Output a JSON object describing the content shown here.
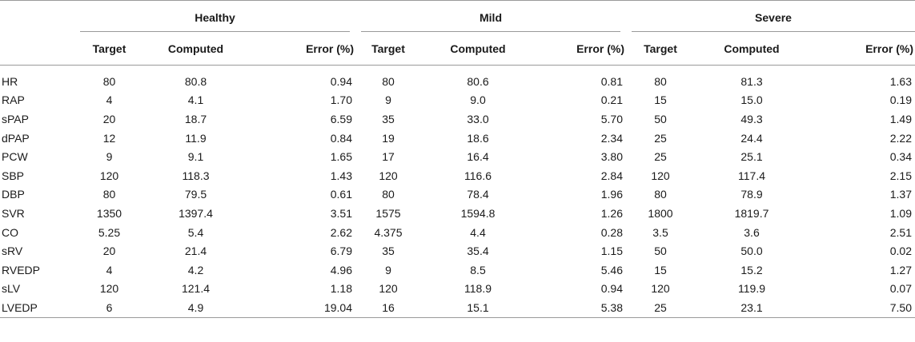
{
  "groups": [
    "Healthy",
    "Mild",
    "Severe"
  ],
  "subheaders": [
    "Target",
    "Computed",
    "Error (%)"
  ],
  "rows": [
    {
      "name": "HR",
      "healthy": [
        "80",
        "80.8",
        "0.94"
      ],
      "mild": [
        "80",
        "80.6",
        "0.81"
      ],
      "severe": [
        "80",
        "81.3",
        "1.63"
      ]
    },
    {
      "name": "RAP",
      "healthy": [
        "4",
        "4.1",
        "1.70"
      ],
      "mild": [
        "9",
        "9.0",
        "0.21"
      ],
      "severe": [
        "15",
        "15.0",
        "0.19"
      ]
    },
    {
      "name": "sPAP",
      "healthy": [
        "20",
        "18.7",
        "6.59"
      ],
      "mild": [
        "35",
        "33.0",
        "5.70"
      ],
      "severe": [
        "50",
        "49.3",
        "1.49"
      ]
    },
    {
      "name": "dPAP",
      "healthy": [
        "12",
        "11.9",
        "0.84"
      ],
      "mild": [
        "19",
        "18.6",
        "2.34"
      ],
      "severe": [
        "25",
        "24.4",
        "2.22"
      ]
    },
    {
      "name": "PCW",
      "healthy": [
        "9",
        "9.1",
        "1.65"
      ],
      "mild": [
        "17",
        "16.4",
        "3.80"
      ],
      "severe": [
        "25",
        "25.1",
        "0.34"
      ]
    },
    {
      "name": "SBP",
      "healthy": [
        "120",
        "118.3",
        "1.43"
      ],
      "mild": [
        "120",
        "116.6",
        "2.84"
      ],
      "severe": [
        "120",
        "117.4",
        "2.15"
      ]
    },
    {
      "name": "DBP",
      "healthy": [
        "80",
        "79.5",
        "0.61"
      ],
      "mild": [
        "80",
        "78.4",
        "1.96"
      ],
      "severe": [
        "80",
        "78.9",
        "1.37"
      ]
    },
    {
      "name": "SVR",
      "healthy": [
        "1350",
        "1397.4",
        "3.51"
      ],
      "mild": [
        "1575",
        "1594.8",
        "1.26"
      ],
      "severe": [
        "1800",
        "1819.7",
        "1.09"
      ]
    },
    {
      "name": "CO",
      "healthy": [
        "5.25",
        "5.4",
        "2.62"
      ],
      "mild": [
        "4.375",
        "4.4",
        "0.28"
      ],
      "severe": [
        "3.5",
        "3.6",
        "2.51"
      ]
    },
    {
      "name": "sRV",
      "healthy": [
        "20",
        "21.4",
        "6.79"
      ],
      "mild": [
        "35",
        "35.4",
        "1.15"
      ],
      "severe": [
        "50",
        "50.0",
        "0.02"
      ]
    },
    {
      "name": "RVEDP",
      "healthy": [
        "4",
        "4.2",
        "4.96"
      ],
      "mild": [
        "9",
        "8.5",
        "5.46"
      ],
      "severe": [
        "15",
        "15.2",
        "1.27"
      ]
    },
    {
      "name": "sLV",
      "healthy": [
        "120",
        "121.4",
        "1.18"
      ],
      "mild": [
        "120",
        "118.9",
        "0.94"
      ],
      "severe": [
        "120",
        "119.9",
        "0.07"
      ]
    },
    {
      "name": "LVEDP",
      "healthy": [
        "6",
        "4.9",
        "19.04"
      ],
      "mild": [
        "16",
        "15.1",
        "5.38"
      ],
      "severe": [
        "25",
        "23.1",
        "7.50"
      ]
    }
  ]
}
